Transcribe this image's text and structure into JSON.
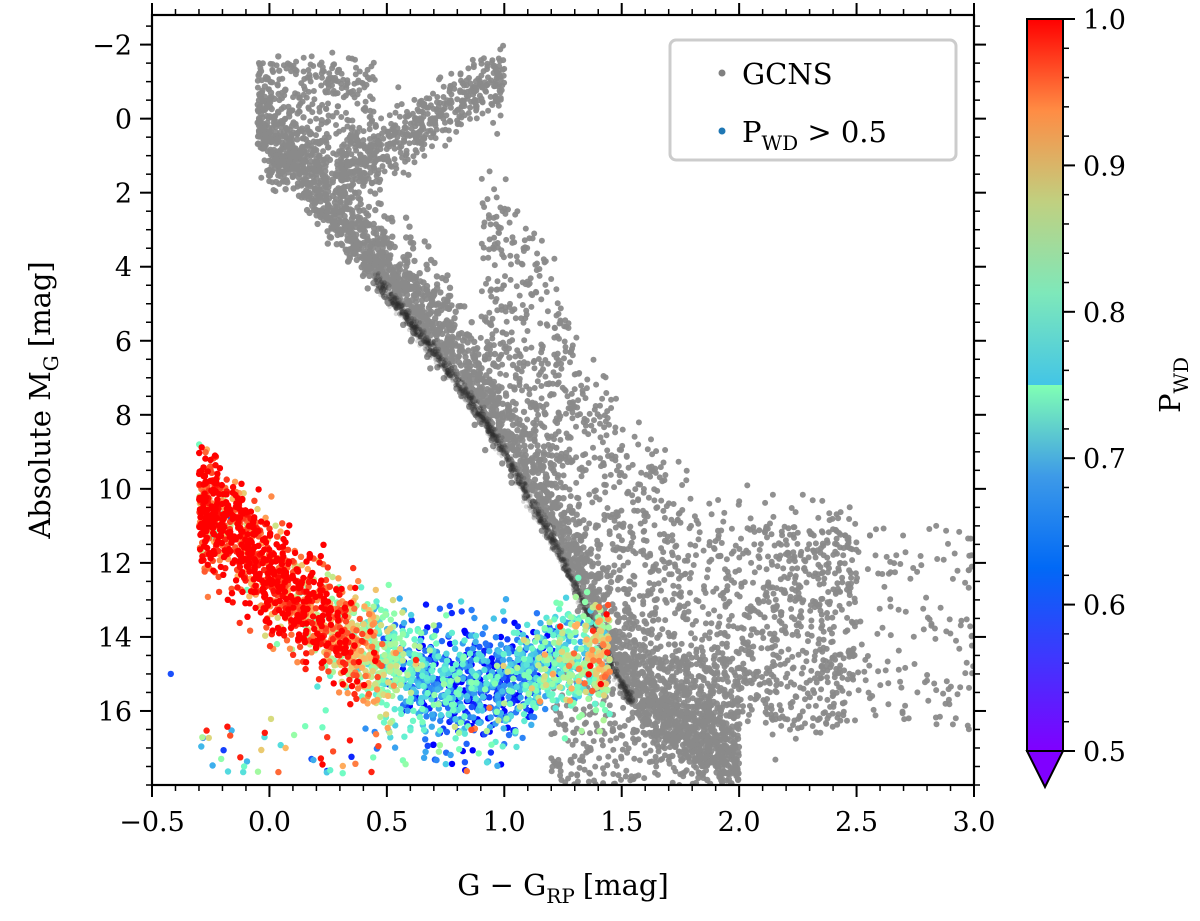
{
  "chart_data": {
    "type": "scatter",
    "title": "",
    "xlabel": "G − G",
    "xlabel_sub": "RP",
    "xlabel_unit": "[mag]",
    "ylabel": "Absolute M",
    "ylabel_sub": "G",
    "ylabel_unit": "[mag]",
    "xlim": [
      -0.5,
      3.0
    ],
    "ylim": [
      18.0,
      -2.8
    ],
    "y_inverted": true,
    "xticks": [
      -0.5,
      0.0,
      0.5,
      1.0,
      1.5,
      2.0,
      2.5,
      3.0
    ],
    "xtick_labels": [
      "−0.5",
      "0.0",
      "0.5",
      "1.0",
      "1.5",
      "2.0",
      "2.5",
      "3.0"
    ],
    "yticks": [
      -2,
      0,
      2,
      4,
      6,
      8,
      10,
      12,
      14,
      16
    ],
    "ytick_labels": [
      "−2",
      "0",
      "2",
      "4",
      "6",
      "8",
      "10",
      "12",
      "14",
      "16"
    ],
    "legend_position": "top-right",
    "legend": [
      {
        "label": "GCNS",
        "color": "#808080"
      },
      {
        "label": "P",
        "sub": "WD",
        "suffix": " > 0.5",
        "color": "#1f77b4"
      }
    ],
    "colorbar": {
      "label": "P",
      "label_sub": "WD",
      "range": [
        0.5,
        1.0
      ],
      "ticks": [
        0.5,
        0.6,
        0.7,
        0.8,
        0.9,
        1.0
      ],
      "tick_labels": [
        "0.5",
        "0.6",
        "0.7",
        "0.8",
        "0.9",
        "1.0"
      ],
      "extend": "min",
      "colormap": "rainbow"
    },
    "series": [
      {
        "name": "GCNS",
        "color": "#808080",
        "description_points": "main sequence, giant branch and white dwarf sequence (sampled envelope)",
        "main_sequence": {
          "color_G_GRP": [
            -0.05,
            0.0,
            0.1,
            0.2,
            0.3,
            0.4,
            0.5,
            0.6,
            0.7,
            0.8,
            0.9,
            1.0,
            1.1,
            1.2,
            1.3,
            1.4,
            1.5,
            1.6,
            1.7,
            1.8,
            1.9,
            2.0
          ],
          "M_G": [
            0.5,
            1.0,
            1.8,
            2.5,
            3.2,
            4.0,
            4.7,
            5.5,
            6.3,
            7.1,
            8.0,
            9.0,
            10.2,
            11.3,
            12.6,
            14.0,
            15.3,
            16.2,
            16.8,
            17.2,
            17.5,
            17.8
          ]
        },
        "giant_branch": {
          "color_G_GRP": [
            0.3,
            0.4,
            0.5,
            0.6,
            0.7,
            0.8,
            0.9,
            1.0
          ],
          "M_G": [
            1.0,
            0.7,
            0.3,
            0.0,
            -0.4,
            -0.8,
            -1.2,
            -1.5
          ]
        }
      },
      {
        "name": "P_WD > 0.5",
        "color_by": "P_WD",
        "white_dwarf_sequence": {
          "color_G_GRP": [
            -0.4,
            -0.3,
            -0.2,
            -0.1,
            0.0,
            0.1,
            0.2,
            0.3,
            0.4,
            0.5,
            0.6,
            0.7,
            0.8,
            0.9,
            1.0,
            1.1,
            1.2,
            1.3,
            1.4
          ],
          "M_G_center": [
            15.0,
            10.5,
            11.0,
            11.6,
            12.3,
            12.9,
            13.4,
            13.9,
            14.3,
            14.7,
            15.0,
            15.2,
            15.3,
            15.3,
            15.2,
            15.0,
            14.8,
            14.6,
            14.5
          ],
          "P_WD_typical": [
            0.7,
            0.98,
            0.98,
            0.99,
            0.99,
            0.97,
            0.95,
            0.9,
            0.85,
            0.75,
            0.65,
            0.6,
            0.58,
            0.57,
            0.6,
            0.62,
            0.68,
            0.72,
            0.8
          ]
        }
      }
    ]
  }
}
